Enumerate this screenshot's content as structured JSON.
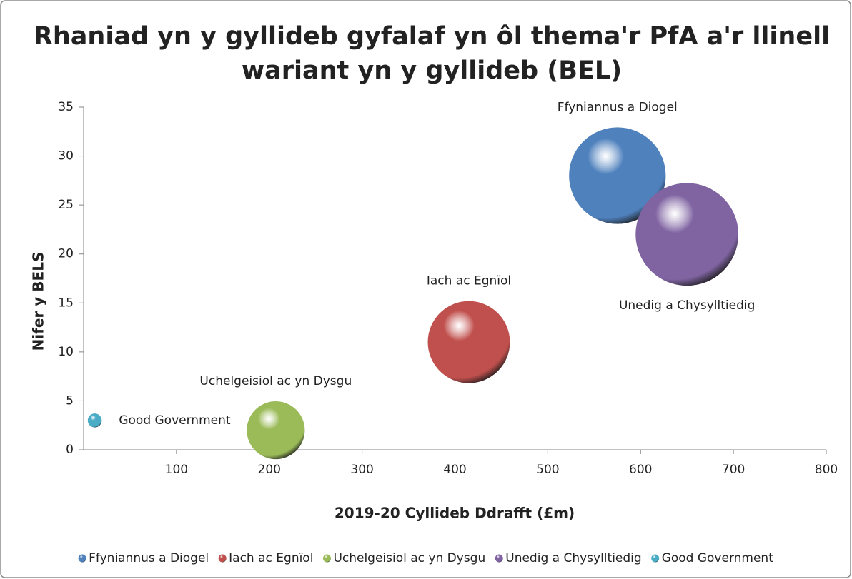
{
  "chart_data": {
    "type": "bubble",
    "title": [
      "Rhaniad yn y gyllideb gyfalaf yn ôl thema'r PfA a'r llinell",
      "wariant yn y gyllideb (BEL)"
    ],
    "x_label": "2019-20 Cyllideb Ddrafft (£m)",
    "y_label": "Nifer y BELS",
    "xlim": [
      0,
      800
    ],
    "xticks": [
      100,
      200,
      300,
      400,
      500,
      600,
      700,
      800
    ],
    "ylim": [
      0,
      35
    ],
    "yticks": [
      0,
      5,
      10,
      15,
      20,
      25,
      30,
      35
    ],
    "legend": "bottom",
    "series": [
      {
        "name": "Ffyniannus a Diogel",
        "color": "#4f81bd",
        "x": [
          575
        ],
        "values": [
          28
        ],
        "sizes": [
          575
        ]
      },
      {
        "name": "Iach ac Egnïol",
        "color": "#c0504d",
        "x": [
          415
        ],
        "values": [
          11
        ],
        "sizes": [
          415
        ]
      },
      {
        "name": "Uchelgeisiol ac yn Dysgu",
        "color": "#9bbb59",
        "x": [
          207
        ],
        "values": [
          2
        ],
        "sizes": [
          207
        ]
      },
      {
        "name": "Unedig a Chysylltiedig",
        "color": "#8064a2",
        "x": [
          650
        ],
        "values": [
          22
        ],
        "sizes": [
          650
        ]
      },
      {
        "name": "Good Government",
        "color": "#4bacc6",
        "x": [
          12
        ],
        "values": [
          3
        ],
        "sizes": [
          12
        ]
      }
    ]
  }
}
